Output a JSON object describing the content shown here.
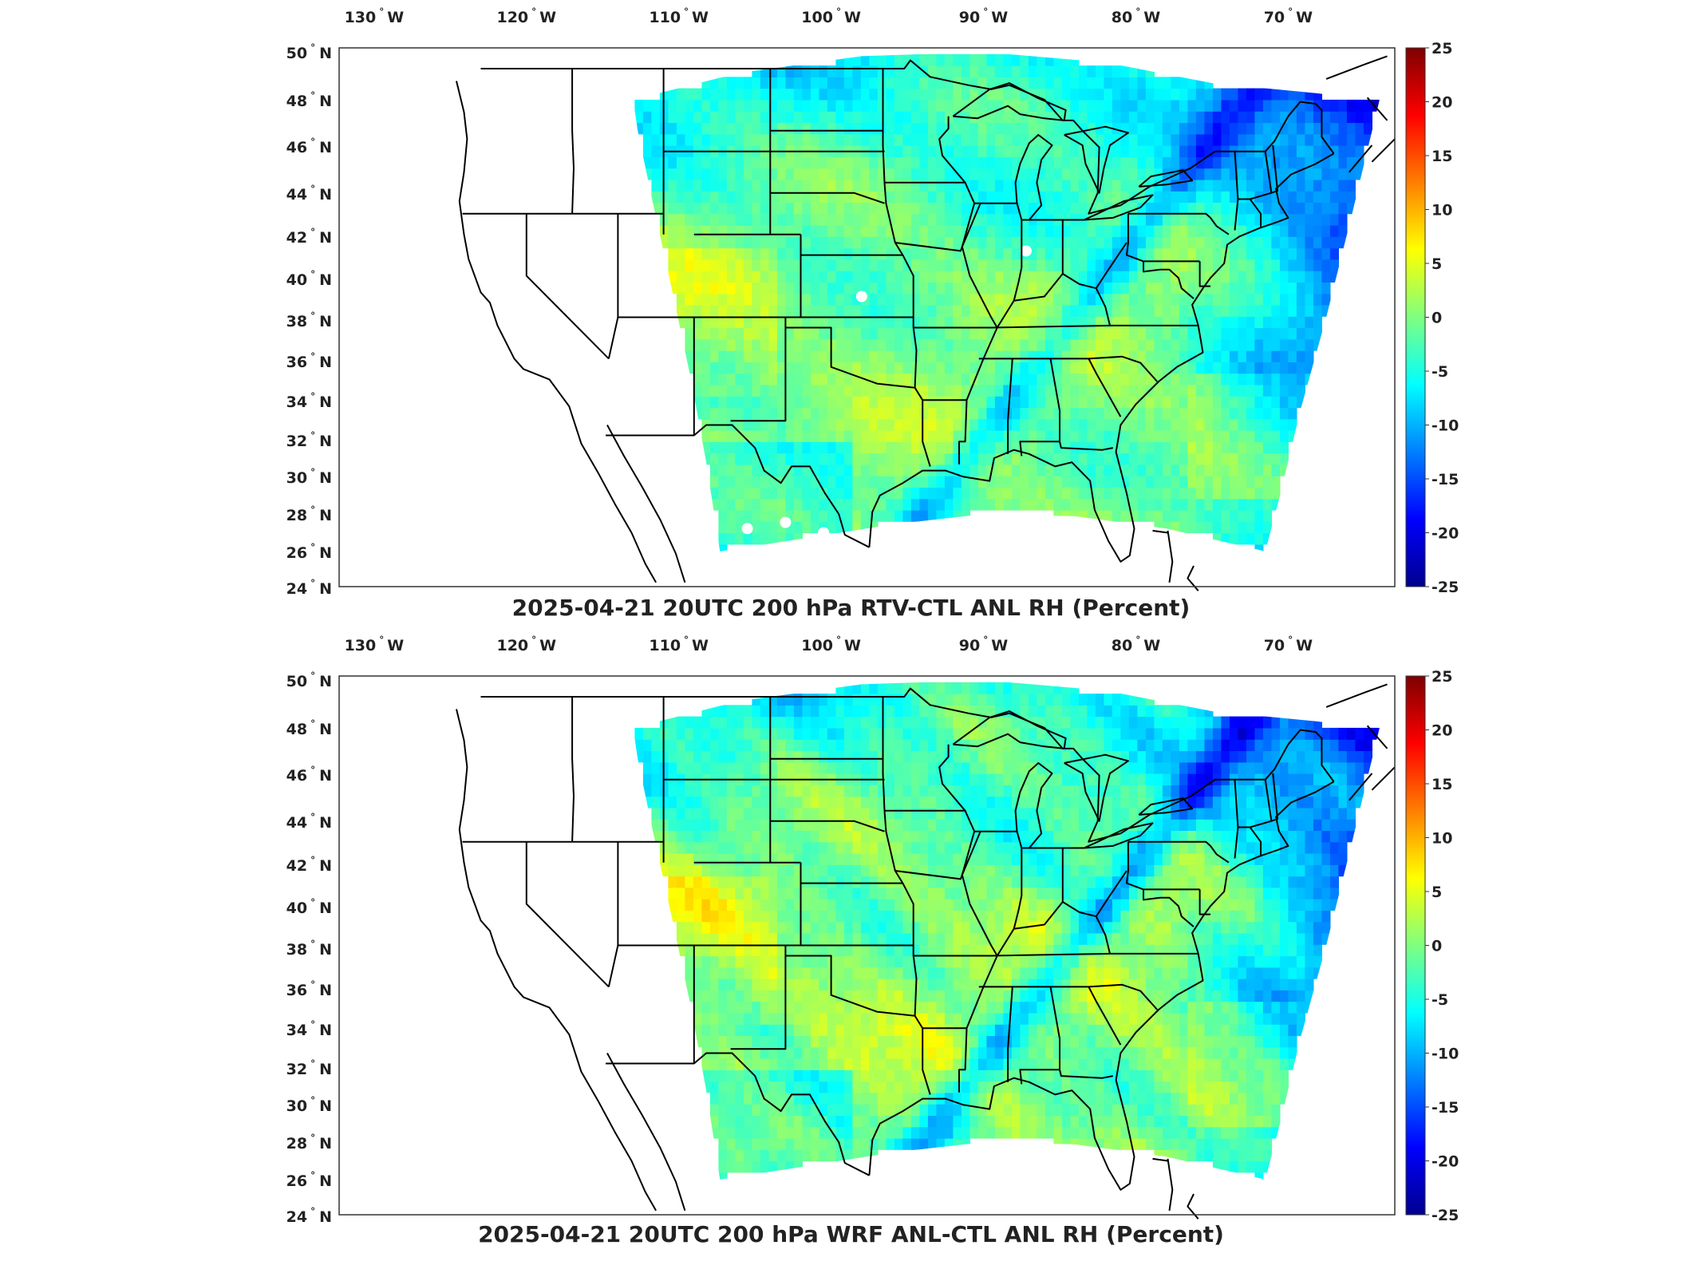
{
  "panels": [
    {
      "title": "2025-04-21 20UTC 200 hPa RTV-CTL ANL RH (Percent)",
      "variant": "rtv"
    },
    {
      "title": "2025-04-21 20UTC 200 hPa WRF ANL-CTL ANL RH (Percent)",
      "variant": "wrf"
    }
  ],
  "lon_labels": [
    {
      "deg": "130",
      "hemi": "W"
    },
    {
      "deg": "120",
      "hemi": "W"
    },
    {
      "deg": "110",
      "hemi": "W"
    },
    {
      "deg": "100",
      "hemi": "W"
    },
    {
      "deg": "90",
      "hemi": "W"
    },
    {
      "deg": "80",
      "hemi": "W"
    },
    {
      "deg": "70",
      "hemi": "W"
    }
  ],
  "lat_labels": [
    {
      "deg": "50",
      "hemi": "N"
    },
    {
      "deg": "48",
      "hemi": "N"
    },
    {
      "deg": "46",
      "hemi": "N"
    },
    {
      "deg": "44",
      "hemi": "N"
    },
    {
      "deg": "42",
      "hemi": "N"
    },
    {
      "deg": "40",
      "hemi": "N"
    },
    {
      "deg": "38",
      "hemi": "N"
    },
    {
      "deg": "36",
      "hemi": "N"
    },
    {
      "deg": "34",
      "hemi": "N"
    },
    {
      "deg": "32",
      "hemi": "N"
    },
    {
      "deg": "30",
      "hemi": "N"
    },
    {
      "deg": "28",
      "hemi": "N"
    },
    {
      "deg": "26",
      "hemi": "N"
    },
    {
      "deg": "24",
      "hemi": "N"
    }
  ],
  "colorbar": {
    "ticks": [
      "25",
      "20",
      "15",
      "10",
      "5",
      "0",
      "-5",
      "-10",
      "-15",
      "-20",
      "-25"
    ],
    "colormap": "jet",
    "colors": [
      "#7f0000",
      "#ff0000",
      "#ff7f00",
      "#ffff00",
      "#7fff7f",
      "#00ffff",
      "#007fff",
      "#0000ff",
      "#00008f"
    ]
  }
}
